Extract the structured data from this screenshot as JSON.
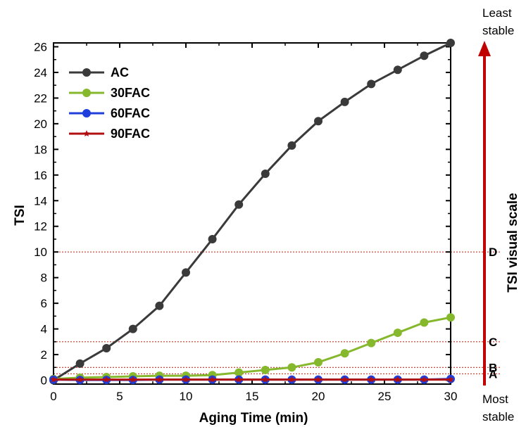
{
  "chart_data": {
    "type": "line",
    "xlabel": "Aging Time (min)",
    "ylabel": "TSI",
    "xlim": [
      0,
      30
    ],
    "ylim": [
      -0.3,
      26.3
    ],
    "xticks": [
      "0",
      "5",
      "10",
      "15",
      "20",
      "25",
      "30"
    ],
    "yticks": [
      "0",
      "2",
      "4",
      "6",
      "8",
      "10",
      "12",
      "14",
      "16",
      "18",
      "20",
      "22",
      "24",
      "26"
    ],
    "x": [
      0,
      2,
      4,
      6,
      8,
      10,
      12,
      14,
      16,
      18,
      20,
      22,
      24,
      26,
      28,
      30
    ],
    "series": [
      {
        "name": "AC",
        "color": "#3a3a3a",
        "marker": "circle",
        "values": [
          0.0,
          1.3,
          2.5,
          4.0,
          5.8,
          8.4,
          11.0,
          13.7,
          16.1,
          18.3,
          20.2,
          21.7,
          23.1,
          24.2,
          25.3,
          26.3
        ]
      },
      {
        "name": "30FAC",
        "color": "#86b82d",
        "marker": "circle",
        "values": [
          0.1,
          0.2,
          0.25,
          0.3,
          0.35,
          0.35,
          0.4,
          0.6,
          0.8,
          1.0,
          1.4,
          2.1,
          2.9,
          3.7,
          4.5,
          4.9
        ]
      },
      {
        "name": "60FAC",
        "color": "#1f3fdc",
        "marker": "circle",
        "values": [
          0.05,
          0.02,
          0.02,
          0.02,
          0.05,
          0.05,
          0.05,
          0.05,
          0.05,
          0.05,
          0.05,
          0.05,
          0.05,
          0.05,
          0.05,
          0.1
        ]
      },
      {
        "name": "90FAC",
        "color": "#b01010",
        "marker": "star",
        "values": [
          0.05,
          0.05,
          0.05,
          0.05,
          0.05,
          0.05,
          0.05,
          0.05,
          0.05,
          0.05,
          0.05,
          0.05,
          0.05,
          0.05,
          0.05,
          0.05
        ]
      }
    ],
    "reference_lines": [
      {
        "label": "A",
        "y": 0.5
      },
      {
        "label": "B",
        "y": 1.0
      },
      {
        "label": "C",
        "y": 3.0
      },
      {
        "label": "D",
        "y": 10.0
      }
    ],
    "reference_color": "#c0392b",
    "legend_position": "top-left",
    "grid": false,
    "scale": {
      "title": "TSI visual scale",
      "top_label": [
        "Least",
        "stable"
      ],
      "bottom_label": [
        "Most",
        "stable"
      ],
      "arrow_color": "#c00000"
    }
  }
}
